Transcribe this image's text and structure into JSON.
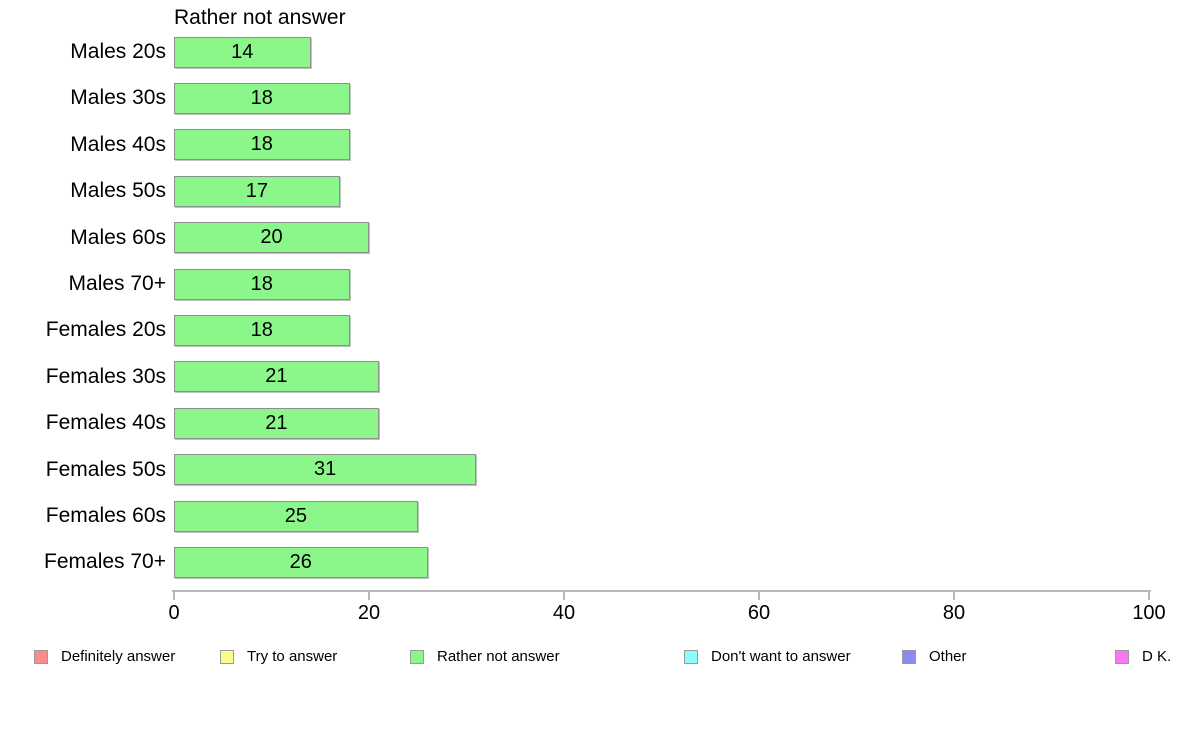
{
  "chart_data": {
    "type": "bar",
    "orientation": "horizontal",
    "title": "Rather not answer",
    "categories": [
      "Males 20s",
      "Males 30s",
      "Males 40s",
      "Males 50s",
      "Males 60s",
      "Males 70+",
      "Females 20s",
      "Females 30s",
      "Females 40s",
      "Females 50s",
      "Females 60s",
      "Females 70+"
    ],
    "values": [
      14,
      18,
      18,
      17,
      20,
      18,
      18,
      21,
      21,
      31,
      25,
      26
    ],
    "series_name": "Rather not answer",
    "xlim": [
      0,
      100
    ],
    "x_ticks": [
      "0",
      "20",
      "40",
      "60",
      "80",
      "100"
    ],
    "x_tick_values": [
      0,
      20,
      40,
      60,
      80,
      100
    ],
    "grid": false,
    "value_labels": "inside-center",
    "bar_color": "#8BF78B",
    "bar_border_color": "#8F8F8F",
    "legend_position": "bottom"
  },
  "legend": {
    "items": [
      {
        "label": "Definitely answer",
        "color": "#FB8C8C"
      },
      {
        "label": "Try to answer",
        "color": "#FCFC8A"
      },
      {
        "label": "Rather not answer",
        "color": "#8BF78B"
      },
      {
        "label": "Don't want to answer",
        "color": "#8AFCFC"
      },
      {
        "label": "Other",
        "color": "#8A8AF0"
      },
      {
        "label": "D K.",
        "color": "#F977F5"
      }
    ]
  }
}
